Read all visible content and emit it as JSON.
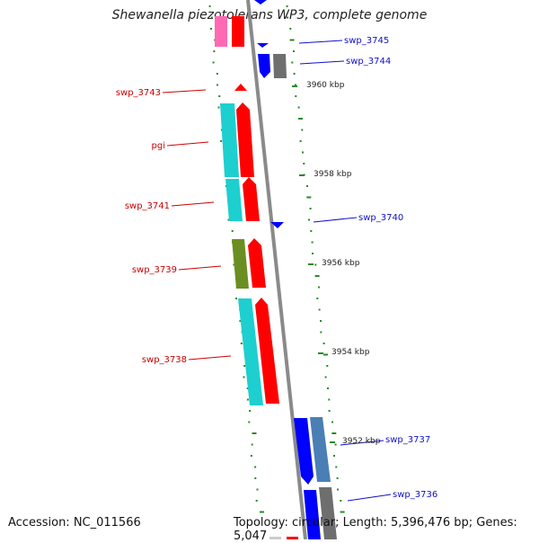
{
  "title": "Shewanella piezotolerans WP3, complete genome",
  "accession": "Accession: NC_011566",
  "topology": "Topology: circular; Length: 5,396,476 bp; Genes: 5,047",
  "colors": {
    "backbone": "#8a8a8a",
    "forward_label": "#1010cc",
    "reverse_label": "#cc0000",
    "tick_marks": "#2a8a2a",
    "gene_red": "#ff0000",
    "gene_blue": "#0000ff",
    "gene_cyan": "#1ecfcf",
    "gene_olive": "#6b8e23",
    "gene_gray": "#6e6e6e",
    "gene_steelblue": "#4a7fb5",
    "gene_pink": "#ff69b4"
  },
  "gene_labels": [
    {
      "id": "swp-3745",
      "text": "swp_3745",
      "strand": "forward"
    },
    {
      "id": "swp-3744",
      "text": "swp_3744",
      "strand": "forward"
    },
    {
      "id": "swp-3743",
      "text": "swp_3743",
      "strand": "reverse"
    },
    {
      "id": "pgi",
      "text": "pgi",
      "strand": "reverse"
    },
    {
      "id": "swp-3741",
      "text": "swp_3741",
      "strand": "reverse"
    },
    {
      "id": "swp-3740",
      "text": "swp_3740",
      "strand": "forward"
    },
    {
      "id": "swp-3739",
      "text": "swp_3739",
      "strand": "reverse"
    },
    {
      "id": "swp-3738",
      "text": "swp_3738",
      "strand": "reverse"
    },
    {
      "id": "swp-3737",
      "text": "swp_3737",
      "strand": "forward"
    },
    {
      "id": "swp-3736",
      "text": "swp_3736",
      "strand": "forward"
    }
  ],
  "position_ticks": [
    "3960 kbp",
    "3958 kbp",
    "3956 kbp",
    "3954 kbp",
    "3952 kbp"
  ]
}
